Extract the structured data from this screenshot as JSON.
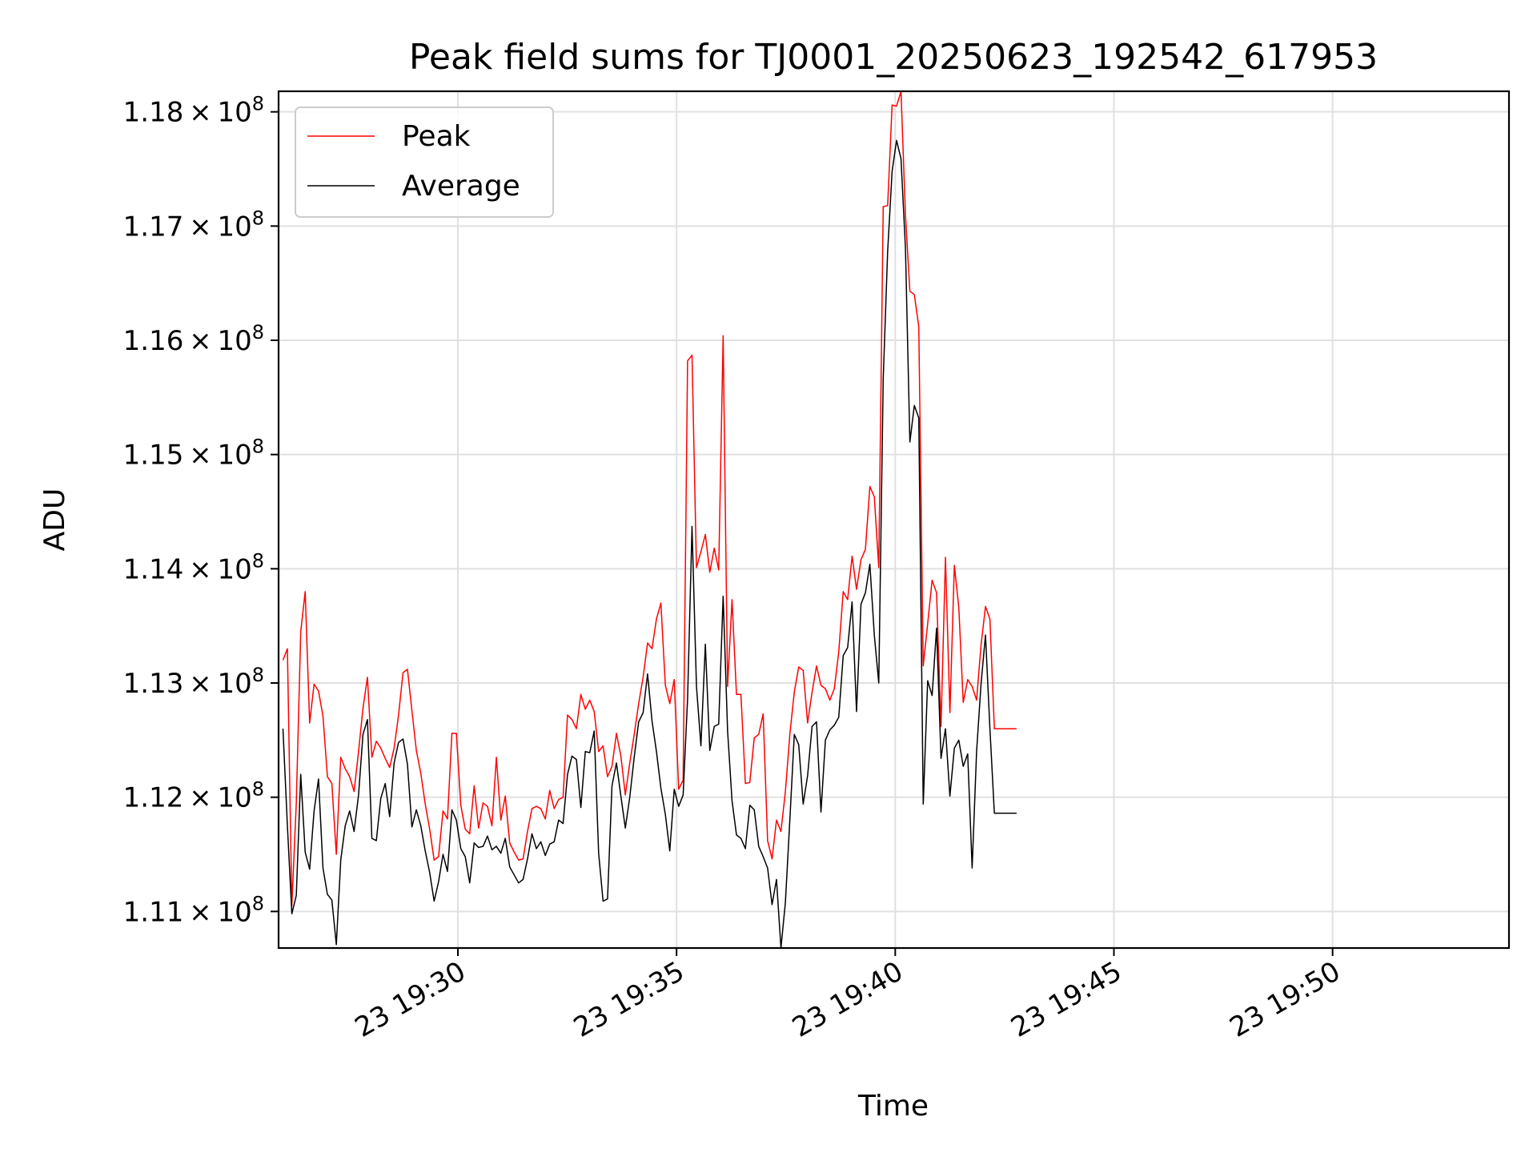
{
  "chart_data": {
    "type": "line",
    "title": "Peak field sums for TJ0001_20250623_192542_617953",
    "xlabel": "Time",
    "ylabel": "ADU",
    "x_start": "23 19:26:00",
    "x_step_seconds": 6.1,
    "xlim": [
      "23 19:25:54",
      "23 19:54:02"
    ],
    "ylim": [
      110680000,
      118180000
    ],
    "x_ticks": [
      "23 19:30",
      "23 19:35",
      "23 19:40",
      "23 19:45",
      "23 19:50"
    ],
    "y_ticks": [
      {
        "value": 111000000,
        "mantissa": "1.11",
        "exp": "8"
      },
      {
        "value": 112000000,
        "mantissa": "1.12",
        "exp": "8"
      },
      {
        "value": 113000000,
        "mantissa": "1.13",
        "exp": "8"
      },
      {
        "value": 114000000,
        "mantissa": "1.14",
        "exp": "8"
      },
      {
        "value": 115000000,
        "mantissa": "1.15",
        "exp": "8"
      },
      {
        "value": 116000000,
        "mantissa": "1.16",
        "exp": "8"
      },
      {
        "value": 117000000,
        "mantissa": "1.17",
        "exp": "8"
      },
      {
        "value": 118000000,
        "mantissa": "1.18",
        "exp": "8"
      }
    ],
    "times_sym": "×",
    "grid": true,
    "legend_position": "upper-left",
    "series": [
      {
        "name": "Peak",
        "color": "#ff0000",
        "values": [
          113200000,
          113300000,
          111050000,
          111950000,
          113450000,
          113800000,
          112650000,
          112990000,
          112930000,
          112710000,
          112180000,
          112120000,
          111500000,
          112350000,
          112250000,
          112180000,
          112050000,
          112400000,
          112780000,
          113050000,
          112350000,
          112490000,
          112430000,
          112340000,
          112260000,
          112430000,
          112720000,
          113090000,
          113120000,
          112760000,
          112410000,
          112210000,
          111940000,
          111720000,
          111450000,
          111480000,
          111880000,
          111810000,
          112560000,
          112560000,
          111930000,
          111720000,
          111680000,
          112100000,
          111730000,
          111950000,
          111920000,
          111750000,
          112350000,
          111800000,
          112010000,
          111600000,
          111520000,
          111450000,
          111460000,
          111700000,
          111900000,
          111920000,
          111900000,
          111810000,
          112060000,
          111900000,
          111980000,
          112000000,
          112720000,
          112680000,
          112600000,
          112900000,
          112770000,
          112850000,
          112750000,
          112400000,
          112450000,
          112180000,
          112270000,
          112560000,
          112360000,
          112020000,
          112300000,
          112550000,
          112820000,
          113050000,
          113350000,
          113300000,
          113560000,
          113700000,
          112980000,
          112820000,
          113030000,
          112070000,
          112150000,
          115820000,
          115870000,
          114010000,
          114150000,
          114300000,
          113970000,
          114180000,
          113990000,
          116040000,
          112970000,
          113730000,
          112900000,
          112900000,
          112120000,
          112130000,
          112520000,
          112550000,
          112730000,
          111620000,
          111460000,
          111800000,
          111700000,
          112050000,
          112550000,
          112920000,
          113140000,
          113110000,
          112650000,
          112920000,
          113150000,
          112980000,
          112950000,
          112850000,
          112950000,
          113270000,
          113800000,
          113730000,
          114110000,
          113820000,
          114080000,
          114170000,
          114720000,
          114630000,
          114010000,
          117170000,
          117180000,
          118060000,
          118050000,
          118180000,
          117100000,
          116430000,
          116400000,
          116120000,
          113150000,
          113520000,
          113900000,
          113790000,
          112620000,
          114100000,
          112740000,
          114030000,
          113660000,
          112830000,
          113030000,
          112970000,
          112850000,
          113330000,
          113670000,
          113560000,
          112600000,
          112600000,
          112600000,
          112600000,
          112600000,
          112600000
        ]
      },
      {
        "name": "Average",
        "color": "#000000",
        "values": [
          112600000,
          111750000,
          110980000,
          111140000,
          112200000,
          111520000,
          111370000,
          111880000,
          112160000,
          111380000,
          111150000,
          111100000,
          110710000,
          111450000,
          111750000,
          111880000,
          111700000,
          112020000,
          112550000,
          112680000,
          111640000,
          111620000,
          111990000,
          112120000,
          111830000,
          112300000,
          112480000,
          112510000,
          112290000,
          111740000,
          111890000,
          111750000,
          111530000,
          111340000,
          111090000,
          111260000,
          111500000,
          111350000,
          111890000,
          111800000,
          111550000,
          111480000,
          111250000,
          111600000,
          111560000,
          111570000,
          111660000,
          111540000,
          111570000,
          111510000,
          111640000,
          111390000,
          111320000,
          111250000,
          111280000,
          111460000,
          111680000,
          111550000,
          111610000,
          111490000,
          111590000,
          111610000,
          111800000,
          111770000,
          112200000,
          112360000,
          112330000,
          111910000,
          112400000,
          112390000,
          112580000,
          111510000,
          111090000,
          111110000,
          112100000,
          112300000,
          112010000,
          111730000,
          112000000,
          112350000,
          112660000,
          112740000,
          113080000,
          112670000,
          112400000,
          112080000,
          111850000,
          111530000,
          112070000,
          111920000,
          112020000,
          112860000,
          114370000,
          112970000,
          112450000,
          113340000,
          112410000,
          112620000,
          112640000,
          113760000,
          112580000,
          111970000,
          111670000,
          111640000,
          111550000,
          111930000,
          111890000,
          111570000,
          111480000,
          111380000,
          111060000,
          111280000,
          110680000,
          111080000,
          111800000,
          112550000,
          112460000,
          111940000,
          112190000,
          112620000,
          112660000,
          111870000,
          112500000,
          112590000,
          112630000,
          112700000,
          113240000,
          113310000,
          113710000,
          112750000,
          113690000,
          113790000,
          114040000,
          113420000,
          113000000,
          115660000,
          116780000,
          117480000,
          117750000,
          117590000,
          116810000,
          115110000,
          115430000,
          115320000,
          111940000,
          113020000,
          112890000,
          113480000,
          112340000,
          112600000,
          112010000,
          112430000,
          112500000,
          112270000,
          112380000,
          111380000,
          112400000,
          112990000,
          113420000,
          112600000,
          111860000,
          111860000,
          111860000,
          111860000,
          111860000,
          111860000
        ]
      }
    ]
  }
}
